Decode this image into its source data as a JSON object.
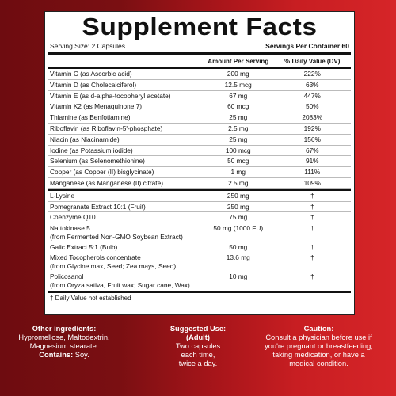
{
  "title": "Supplement Facts",
  "serving_size": "Serving Size: 2 Capsules",
  "servings_per_container": "Servings Per Container 60",
  "columns": {
    "amount": "Amount Per Serving",
    "dv": "% Daily Value (DV)"
  },
  "vitamins": [
    {
      "name": "Vitamin C (as Ascorbic acid)",
      "amount": "200 mg",
      "dv": "222%"
    },
    {
      "name": "Vitamin D (as Cholecalciferol)",
      "amount": "12.5 mcg",
      "dv": "63%"
    },
    {
      "name": "Vitamin E (as d-alpha-tocopheryl acetate)",
      "amount": "67 mg",
      "dv": "447%"
    },
    {
      "name": "Vitamin K2 (as Menaquinone 7)",
      "amount": "60 mcg",
      "dv": "50%"
    },
    {
      "name": "Thiamine (as Benfotiamine)",
      "amount": "25 mg",
      "dv": "2083%"
    },
    {
      "name": "Riboflavin (as Riboflavin-5'-phosphate)",
      "amount": "2.5 mg",
      "dv": "192%"
    },
    {
      "name": "Niacin (as Niacinamide)",
      "amount": "25 mg",
      "dv": "156%"
    },
    {
      "name": "Iodine (as Potassium iodide)",
      "amount": "100 mcg",
      "dv": "67%"
    },
    {
      "name": "Selenium (as Selenomethionine)",
      "amount": "50 mcg",
      "dv": "91%"
    },
    {
      "name": "Copper (as Copper (II) bisglycinate)",
      "amount": "1 mg",
      "dv": "111%"
    },
    {
      "name": "Manganese (as Manganese (II) citrate)",
      "amount": "2.5 mg",
      "dv": "109%"
    }
  ],
  "others": [
    {
      "name": "L-Lysine",
      "name2": "",
      "amount": "250 mg",
      "dv": "†"
    },
    {
      "name": "Pomegranate Extract 10:1 (Fruit)",
      "name2": "",
      "amount": "250 mg",
      "dv": "†"
    },
    {
      "name": "Coenzyme Q10",
      "name2": "",
      "amount": "75 mg",
      "dv": "†"
    },
    {
      "name": "Nattokinase 5",
      "name2": "(from Fermented Non-GMO Soybean Extract)",
      "amount": "50 mg (1000 FU)",
      "dv": "†"
    },
    {
      "name": "Galic Extract 5:1 (Bulb)",
      "name2": "",
      "amount": "50 mg",
      "dv": "†"
    },
    {
      "name": "Mixed Tocopherols concentrate",
      "name2": "(from Glycine max, Seed; Zea mays, Seed)",
      "amount": "13.6 mg",
      "dv": "†"
    },
    {
      "name": "Policosanol",
      "name2": "(from Oryza sativa, Fruit wax; Sugar cane, Wax)",
      "amount": "10 mg",
      "dv": "†"
    }
  ],
  "footnote": "† Daily Value not established",
  "other_ingredients": {
    "heading": "Other ingredients:",
    "line1": "Hypromellose, Maltodextrin,",
    "line2": "Magnesium stearate.",
    "contains_label": "Contains:",
    "contains_value": "Soy."
  },
  "suggested_use": {
    "heading": "Suggested Use:",
    "sub": "(Adult)",
    "line1": "Two capsules",
    "line2": "each time,",
    "line3": "twice a day."
  },
  "caution": {
    "heading": "Caution:",
    "line1": "Consult a physician before use if",
    "line2": "you're pregnant or breastfeeding,",
    "line3": "taking medication, or have a",
    "line4": "medical condition."
  }
}
